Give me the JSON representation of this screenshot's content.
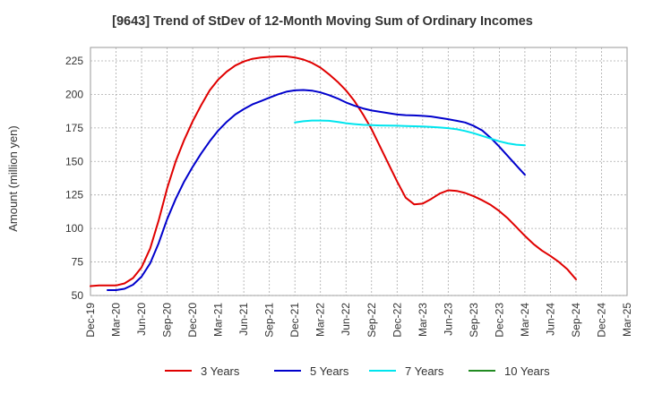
{
  "chart_data": {
    "type": "line",
    "title": "[9643]  Trend of StDev of 12-Month Moving Sum of Ordinary Incomes",
    "ylabel": "Amount (million yen)",
    "xlabel": "",
    "x_ticks": [
      "Dec-19",
      "Mar-20",
      "Jun-20",
      "Sep-20",
      "Dec-20",
      "Mar-21",
      "Jun-21",
      "Sep-21",
      "Dec-21",
      "Mar-22",
      "Jun-22",
      "Sep-22",
      "Dec-22",
      "Mar-23",
      "Jun-23",
      "Sep-23",
      "Dec-23",
      "Mar-24",
      "Jun-24",
      "Sep-24",
      "Dec-24",
      "Mar-25"
    ],
    "y_ticks": [
      50,
      75,
      100,
      125,
      150,
      175,
      200,
      225
    ],
    "ylim": [
      50,
      235
    ],
    "grid": true,
    "legend_position": "bottom",
    "series": [
      {
        "name": "3 Years",
        "color": "#e00000",
        "values": [
          [
            "Dec-19",
            57
          ],
          [
            "Jan-20",
            57.5
          ],
          [
            "Feb-20",
            57.5
          ],
          [
            "Mar-20",
            57.5
          ],
          [
            "Apr-20",
            59
          ],
          [
            "May-20",
            63
          ],
          [
            "Jun-20",
            71
          ],
          [
            "Jul-20",
            85
          ],
          [
            "Aug-20",
            106
          ],
          [
            "Sep-20",
            130
          ],
          [
            "Oct-20",
            150
          ],
          [
            "Nov-20",
            166
          ],
          [
            "Dec-20",
            180
          ],
          [
            "Jan-21",
            192
          ],
          [
            "Feb-21",
            203
          ],
          [
            "Mar-21",
            211
          ],
          [
            "Apr-21",
            217
          ],
          [
            "May-21",
            221.5
          ],
          [
            "Jun-21",
            224.5
          ],
          [
            "Jul-21",
            226.5
          ],
          [
            "Aug-21",
            227.5
          ],
          [
            "Sep-21",
            228
          ],
          [
            "Oct-21",
            228.3
          ],
          [
            "Nov-21",
            228.3
          ],
          [
            "Dec-21",
            227.5
          ],
          [
            "Jan-22",
            226
          ],
          [
            "Feb-22",
            223.5
          ],
          [
            "Mar-22",
            220
          ],
          [
            "Apr-22",
            215
          ],
          [
            "May-22",
            209.5
          ],
          [
            "Jun-22",
            203
          ],
          [
            "Jul-22",
            195
          ],
          [
            "Aug-22",
            185
          ],
          [
            "Sep-22",
            174
          ],
          [
            "Oct-22",
            161
          ],
          [
            "Nov-22",
            148
          ],
          [
            "Dec-22",
            135
          ],
          [
            "Jan-23",
            123
          ],
          [
            "Feb-23",
            118
          ],
          [
            "Mar-23",
            118.5
          ],
          [
            "Apr-23",
            122
          ],
          [
            "May-23",
            126
          ],
          [
            "Jun-23",
            128.5
          ],
          [
            "Jul-23",
            128
          ],
          [
            "Aug-23",
            126.5
          ],
          [
            "Sep-23",
            124
          ],
          [
            "Oct-23",
            121
          ],
          [
            "Nov-23",
            117.5
          ],
          [
            "Dec-23",
            113
          ],
          [
            "Jan-24",
            107.5
          ],
          [
            "Feb-24",
            101
          ],
          [
            "Mar-24",
            94.5
          ],
          [
            "Apr-24",
            88.5
          ],
          [
            "May-24",
            83.5
          ],
          [
            "Jun-24",
            79.5
          ],
          [
            "Jul-24",
            75
          ],
          [
            "Aug-24",
            69.5
          ],
          [
            "Sep-24",
            62
          ]
        ]
      },
      {
        "name": "5 Years",
        "color": "#0000cc",
        "values": [
          [
            "Feb-20",
            54
          ],
          [
            "Mar-20",
            54
          ],
          [
            "Apr-20",
            55
          ],
          [
            "May-20",
            58
          ],
          [
            "Jun-20",
            64
          ],
          [
            "Jul-20",
            74
          ],
          [
            "Aug-20",
            89
          ],
          [
            "Sep-20",
            107
          ],
          [
            "Oct-20",
            122
          ],
          [
            "Nov-20",
            135
          ],
          [
            "Dec-20",
            146
          ],
          [
            "Jan-21",
            156
          ],
          [
            "Feb-21",
            165
          ],
          [
            "Mar-21",
            173
          ],
          [
            "Apr-21",
            179.5
          ],
          [
            "May-21",
            185
          ],
          [
            "Jun-21",
            189
          ],
          [
            "Jul-21",
            192.5
          ],
          [
            "Aug-21",
            195
          ],
          [
            "Sep-21",
            197.5
          ],
          [
            "Oct-21",
            200
          ],
          [
            "Nov-21",
            202
          ],
          [
            "Dec-21",
            203
          ],
          [
            "Jan-22",
            203.3
          ],
          [
            "Feb-22",
            202.8
          ],
          [
            "Mar-22",
            201.5
          ],
          [
            "Apr-22",
            199.5
          ],
          [
            "May-22",
            197
          ],
          [
            "Jun-22",
            194
          ],
          [
            "Jul-22",
            191.5
          ],
          [
            "Aug-22",
            189.5
          ],
          [
            "Sep-22",
            188
          ],
          [
            "Oct-22",
            187
          ],
          [
            "Nov-22",
            186
          ],
          [
            "Dec-22",
            185
          ],
          [
            "Jan-23",
            184.5
          ],
          [
            "Feb-23",
            184.3
          ],
          [
            "Mar-23",
            184
          ],
          [
            "Apr-23",
            183.5
          ],
          [
            "May-23",
            182.5
          ],
          [
            "Jun-23",
            181.5
          ],
          [
            "Jul-23",
            180.3
          ],
          [
            "Aug-23",
            179
          ],
          [
            "Sep-23",
            176.5
          ],
          [
            "Oct-23",
            173
          ],
          [
            "Nov-23",
            167.5
          ],
          [
            "Dec-23",
            161
          ],
          [
            "Jan-24",
            154
          ],
          [
            "Feb-24",
            147
          ],
          [
            "Mar-24",
            140
          ]
        ]
      },
      {
        "name": "7 Years",
        "color": "#00e5ee",
        "values": [
          [
            "Dec-21",
            179
          ],
          [
            "Jan-22",
            180
          ],
          [
            "Feb-22",
            180.5
          ],
          [
            "Mar-22",
            180.5
          ],
          [
            "Apr-22",
            180.3
          ],
          [
            "May-22",
            179.5
          ],
          [
            "Jun-22",
            178.5
          ],
          [
            "Jul-22",
            177.8
          ],
          [
            "Aug-22",
            177.3
          ],
          [
            "Sep-22",
            177
          ],
          [
            "Oct-22",
            176.8
          ],
          [
            "Nov-22",
            176.7
          ],
          [
            "Dec-22",
            176.6
          ],
          [
            "Jan-23",
            176.4
          ],
          [
            "Feb-23",
            176.2
          ],
          [
            "Mar-23",
            176
          ],
          [
            "Apr-23",
            175.7
          ],
          [
            "May-23",
            175.3
          ],
          [
            "Jun-23",
            174.8
          ],
          [
            "Jul-23",
            174
          ],
          [
            "Aug-23",
            172.7
          ],
          [
            "Sep-23",
            171
          ],
          [
            "Oct-23",
            169
          ],
          [
            "Nov-23",
            167
          ],
          [
            "Dec-23",
            165
          ],
          [
            "Jan-24",
            163.5
          ],
          [
            "Feb-24",
            162.5
          ],
          [
            "Mar-24",
            162
          ]
        ]
      },
      {
        "name": "10 Years",
        "color": "#228b22",
        "values": []
      }
    ]
  }
}
